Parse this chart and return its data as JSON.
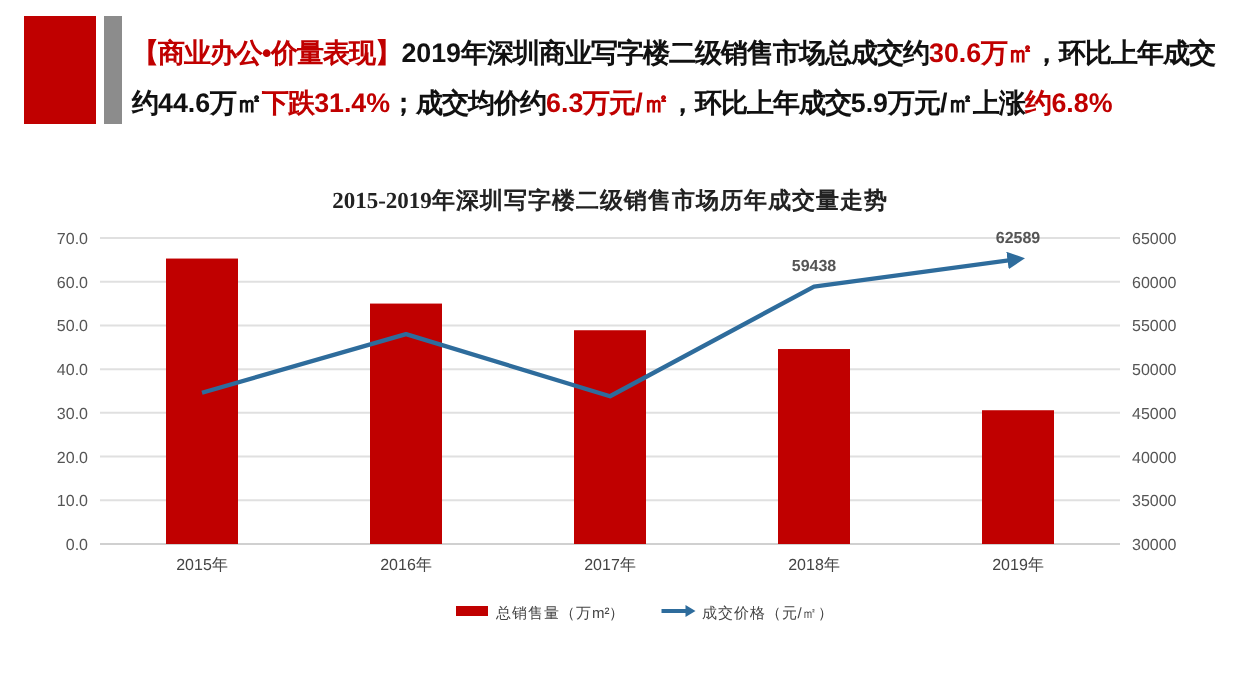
{
  "chart_data": {
    "type": "bar",
    "title": "2015-2019年深圳写字楼二级销售市场历年成交量走势",
    "annotations": [
      "【商业办公•价量表现】",
      "2019年深圳商业写字楼二级销售市场总成交约",
      "30.6万㎡",
      "，环比上年成交约44.6万㎡",
      "下跌31.4%",
      "；成交均价约",
      "6.3万元/㎡",
      "，环比上年成交5.9万元/㎡上涨",
      "约6.8%"
    ],
    "categories": [
      "2015年",
      "2016年",
      "2017年",
      "2018年",
      "2019年"
    ],
    "series": [
      {
        "name": "总销售量（万m²）",
        "color": "#c00000",
        "values": [
          65.3,
          55.0,
          48.9,
          44.6,
          30.6
        ]
      },
      {
        "name": "成交价格（元/㎡）",
        "type": "line",
        "axis": "y2",
        "color": "#2e6c9c",
        "values": [
          47300,
          54000,
          46900,
          59438,
          62589
        ],
        "value_labels": [
          null,
          null,
          null,
          "59438",
          "62589"
        ]
      }
    ],
    "ylim": [
      0,
      70
    ],
    "yticks": [
      {
        "value": 0,
        "label": "0.0"
      },
      {
        "value": 10,
        "label": "10.0"
      },
      {
        "value": 20,
        "label": "20.0"
      },
      {
        "value": 30,
        "label": "30.0"
      },
      {
        "value": 40,
        "label": "40.0"
      },
      {
        "value": 50,
        "label": "50.0"
      },
      {
        "value": 60,
        "label": "60.0"
      },
      {
        "value": 70,
        "label": "70.0"
      }
    ],
    "y2lim": [
      30000,
      65000
    ],
    "y2ticks": [
      30000,
      35000,
      40000,
      45000,
      50000,
      55000,
      60000,
      65000
    ],
    "grid": "y",
    "legend": "bottom"
  }
}
